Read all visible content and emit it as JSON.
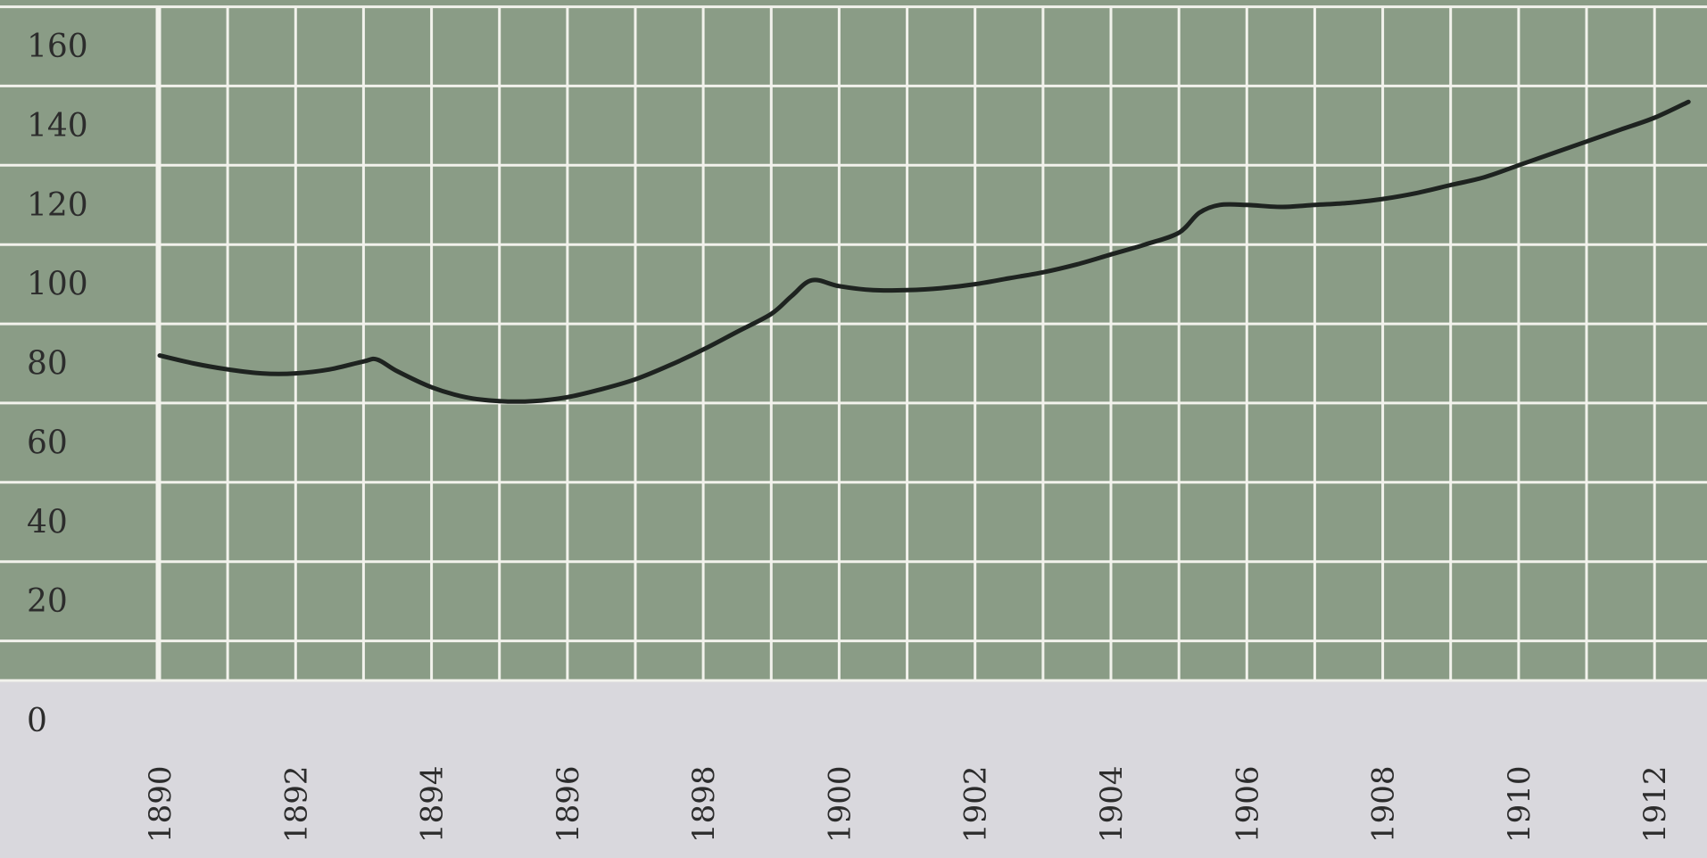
{
  "colors": {
    "plot_background": "#8a9c86",
    "lower_band": "#d9d8dd",
    "grid": "#f2f2ec",
    "line": "#1e2320",
    "tick_text": "#2c2c2c"
  },
  "chart_data": {
    "type": "line",
    "title": "",
    "xlabel": "",
    "ylabel": "",
    "xlim": [
      1889.6,
      1912.6
    ],
    "ylim": [
      0,
      160
    ],
    "grid": true,
    "y_ticks": [
      0,
      20,
      40,
      60,
      80,
      100,
      120,
      140,
      160
    ],
    "y_tick_labels": [
      "0",
      "20",
      "40",
      "60",
      "80",
      "100",
      "120",
      "140",
      "160"
    ],
    "x_ticks": [
      1890,
      1892,
      1894,
      1896,
      1898,
      1900,
      1902,
      1904,
      1906,
      1908,
      1910,
      1912
    ],
    "x_tick_labels": [
      "1890",
      "1892",
      "1894",
      "1896",
      "1898",
      "1900",
      "1902",
      "1904",
      "1906",
      "1908",
      "1910",
      "1912"
    ],
    "series": [
      {
        "x": [
          1890,
          1890.5,
          1891,
          1891.5,
          1892,
          1892.5,
          1893,
          1893.2,
          1893.5,
          1894,
          1894.5,
          1895,
          1895.5,
          1896,
          1896.5,
          1897,
          1897.5,
          1898,
          1898.5,
          1899,
          1899.3,
          1899.6,
          1900,
          1900.5,
          1901,
          1901.5,
          1902,
          1902.5,
          1903,
          1903.5,
          1904,
          1904.5,
          1905,
          1905.3,
          1905.6,
          1906,
          1906.5,
          1907,
          1907.5,
          1908,
          1908.5,
          1909,
          1909.5,
          1910,
          1910.5,
          1911,
          1911.5,
          1912,
          1912.5
        ],
        "y": [
          82,
          80,
          78.5,
          77.5,
          77.5,
          78.5,
          80.5,
          81,
          78,
          74,
          71.5,
          70.5,
          70.5,
          71.5,
          73.5,
          76,
          79.5,
          83.5,
          88,
          92.5,
          97,
          101,
          99.5,
          98.5,
          98.5,
          99,
          100,
          101.5,
          103,
          105,
          107.5,
          110,
          113,
          118,
          120,
          120,
          119.5,
          120,
          120.5,
          121.5,
          123,
          125,
          127,
          130,
          133,
          136,
          139,
          142,
          146
        ]
      }
    ]
  }
}
